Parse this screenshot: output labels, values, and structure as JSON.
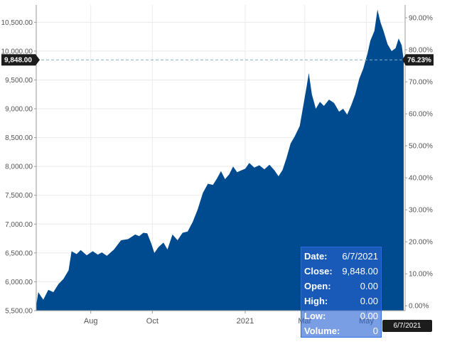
{
  "chart_data": {
    "type": "area",
    "title": "",
    "xlabel": "",
    "ylabel": "",
    "color": "#004a8f",
    "grid": true,
    "x_range": [
      "2020-06-08",
      "2021-06-07"
    ],
    "ylim": [
      5500,
      10800
    ],
    "y2lim": [
      -1.5,
      94
    ],
    "y_ticks_left": [
      "5,500.00",
      "6,000.00",
      "6,500.00",
      "7,000.00",
      "7,500.00",
      "8,000.00",
      "8,500.00",
      "9,000.00",
      "9,500.00",
      "10,000.00",
      "10,500.00"
    ],
    "y_ticks_left_values": [
      5500,
      6000,
      6500,
      7000,
      7500,
      8000,
      8500,
      9000,
      9500,
      10000,
      10500
    ],
    "y_ticks_right": [
      "0.00%",
      "10.00%",
      "20.00%",
      "30.00%",
      "40.00%",
      "50.00%",
      "60.00%",
      "70.00%",
      "80.00%",
      "90.00%"
    ],
    "y_ticks_right_values": [
      0,
      10,
      20,
      30,
      40,
      50,
      60,
      70,
      80,
      90
    ],
    "x_ticks": [
      {
        "label": "Aug",
        "date": "2020-08-01"
      },
      {
        "label": "Oct",
        "date": "2020-10-01"
      },
      {
        "label": "2021",
        "date": "2021-01-01"
      },
      {
        "label": "Mar",
        "date": "2021-03-01"
      },
      {
        "label": "May",
        "date": "2021-05-01"
      }
    ],
    "series": [
      {
        "points": [
          [
            "2020-06-08",
            5590
          ],
          [
            "2020-06-10",
            5820
          ],
          [
            "2020-06-15",
            5690
          ],
          [
            "2020-06-20",
            5860
          ],
          [
            "2020-06-25",
            5820
          ],
          [
            "2020-06-30",
            5960
          ],
          [
            "2020-07-05",
            6050
          ],
          [
            "2020-07-10",
            6200
          ],
          [
            "2020-07-13",
            6530
          ],
          [
            "2020-07-18",
            6480
          ],
          [
            "2020-07-22",
            6550
          ],
          [
            "2020-07-28",
            6460
          ],
          [
            "2020-08-03",
            6530
          ],
          [
            "2020-08-08",
            6470
          ],
          [
            "2020-08-12",
            6510
          ],
          [
            "2020-08-17",
            6450
          ],
          [
            "2020-08-24",
            6560
          ],
          [
            "2020-08-31",
            6720
          ],
          [
            "2020-09-07",
            6740
          ],
          [
            "2020-09-14",
            6820
          ],
          [
            "2020-09-18",
            6790
          ],
          [
            "2020-09-22",
            6850
          ],
          [
            "2020-09-26",
            6840
          ],
          [
            "2020-09-30",
            6660
          ],
          [
            "2020-10-03",
            6500
          ],
          [
            "2020-10-07",
            6600
          ],
          [
            "2020-10-12",
            6680
          ],
          [
            "2020-10-16",
            6560
          ],
          [
            "2020-10-21",
            6820
          ],
          [
            "2020-10-26",
            6720
          ],
          [
            "2020-10-31",
            6850
          ],
          [
            "2020-11-05",
            6870
          ],
          [
            "2020-11-10",
            7040
          ],
          [
            "2020-11-15",
            7260
          ],
          [
            "2020-11-20",
            7540
          ],
          [
            "2020-11-25",
            7700
          ],
          [
            "2020-11-30",
            7680
          ],
          [
            "2020-12-04",
            7790
          ],
          [
            "2020-12-08",
            7920
          ],
          [
            "2020-12-12",
            7780
          ],
          [
            "2020-12-16",
            7860
          ],
          [
            "2020-12-20",
            8000
          ],
          [
            "2020-12-24",
            7900
          ],
          [
            "2020-12-28",
            7930
          ],
          [
            "2021-01-01",
            7960
          ],
          [
            "2021-01-05",
            8060
          ],
          [
            "2021-01-10",
            7980
          ],
          [
            "2021-01-15",
            8020
          ],
          [
            "2021-01-20",
            7950
          ],
          [
            "2021-01-25",
            8030
          ],
          [
            "2021-01-30",
            7930
          ],
          [
            "2021-02-03",
            7830
          ],
          [
            "2021-02-07",
            7940
          ],
          [
            "2021-02-11",
            8150
          ],
          [
            "2021-02-15",
            8400
          ],
          [
            "2021-02-19",
            8520
          ],
          [
            "2021-02-24",
            8700
          ],
          [
            "2021-02-28",
            9100
          ],
          [
            "2021-03-03",
            9400
          ],
          [
            "2021-03-05",
            9620
          ],
          [
            "2021-03-08",
            9250
          ],
          [
            "2021-03-12",
            9000
          ],
          [
            "2021-03-16",
            9120
          ],
          [
            "2021-03-20",
            9050
          ],
          [
            "2021-03-25",
            9160
          ],
          [
            "2021-03-30",
            9100
          ],
          [
            "2021-04-04",
            8950
          ],
          [
            "2021-04-08",
            9000
          ],
          [
            "2021-04-12",
            8900
          ],
          [
            "2021-04-16",
            9060
          ],
          [
            "2021-04-20",
            9250
          ],
          [
            "2021-04-24",
            9520
          ],
          [
            "2021-04-28",
            9700
          ],
          [
            "2021-05-02",
            9950
          ],
          [
            "2021-05-05",
            10180
          ],
          [
            "2021-05-09",
            10350
          ],
          [
            "2021-05-12",
            10720
          ],
          [
            "2021-05-15",
            10500
          ],
          [
            "2021-05-18",
            10350
          ],
          [
            "2021-05-22",
            10120
          ],
          [
            "2021-05-26",
            10000
          ],
          [
            "2021-05-30",
            10050
          ],
          [
            "2021-06-02",
            10220
          ],
          [
            "2021-06-05",
            10100
          ],
          [
            "2021-06-07",
            9848
          ]
        ]
      }
    ],
    "reference_line": {
      "value": 9848,
      "left_label": "9,848.00",
      "right_label": "76.23%"
    }
  },
  "tooltip": {
    "date_label": "Date:",
    "date_value": "6/7/2021",
    "close_label": "Close:",
    "close_value": "9,848.00",
    "open_label": "Open:",
    "open_value": "0.00",
    "high_label": "High:",
    "high_value": "0.00",
    "low_label": "Low:",
    "low_value": "0.00",
    "volume_label": "Volume:",
    "volume_value": "0"
  },
  "crosshair_date_label": "6/7/2021"
}
